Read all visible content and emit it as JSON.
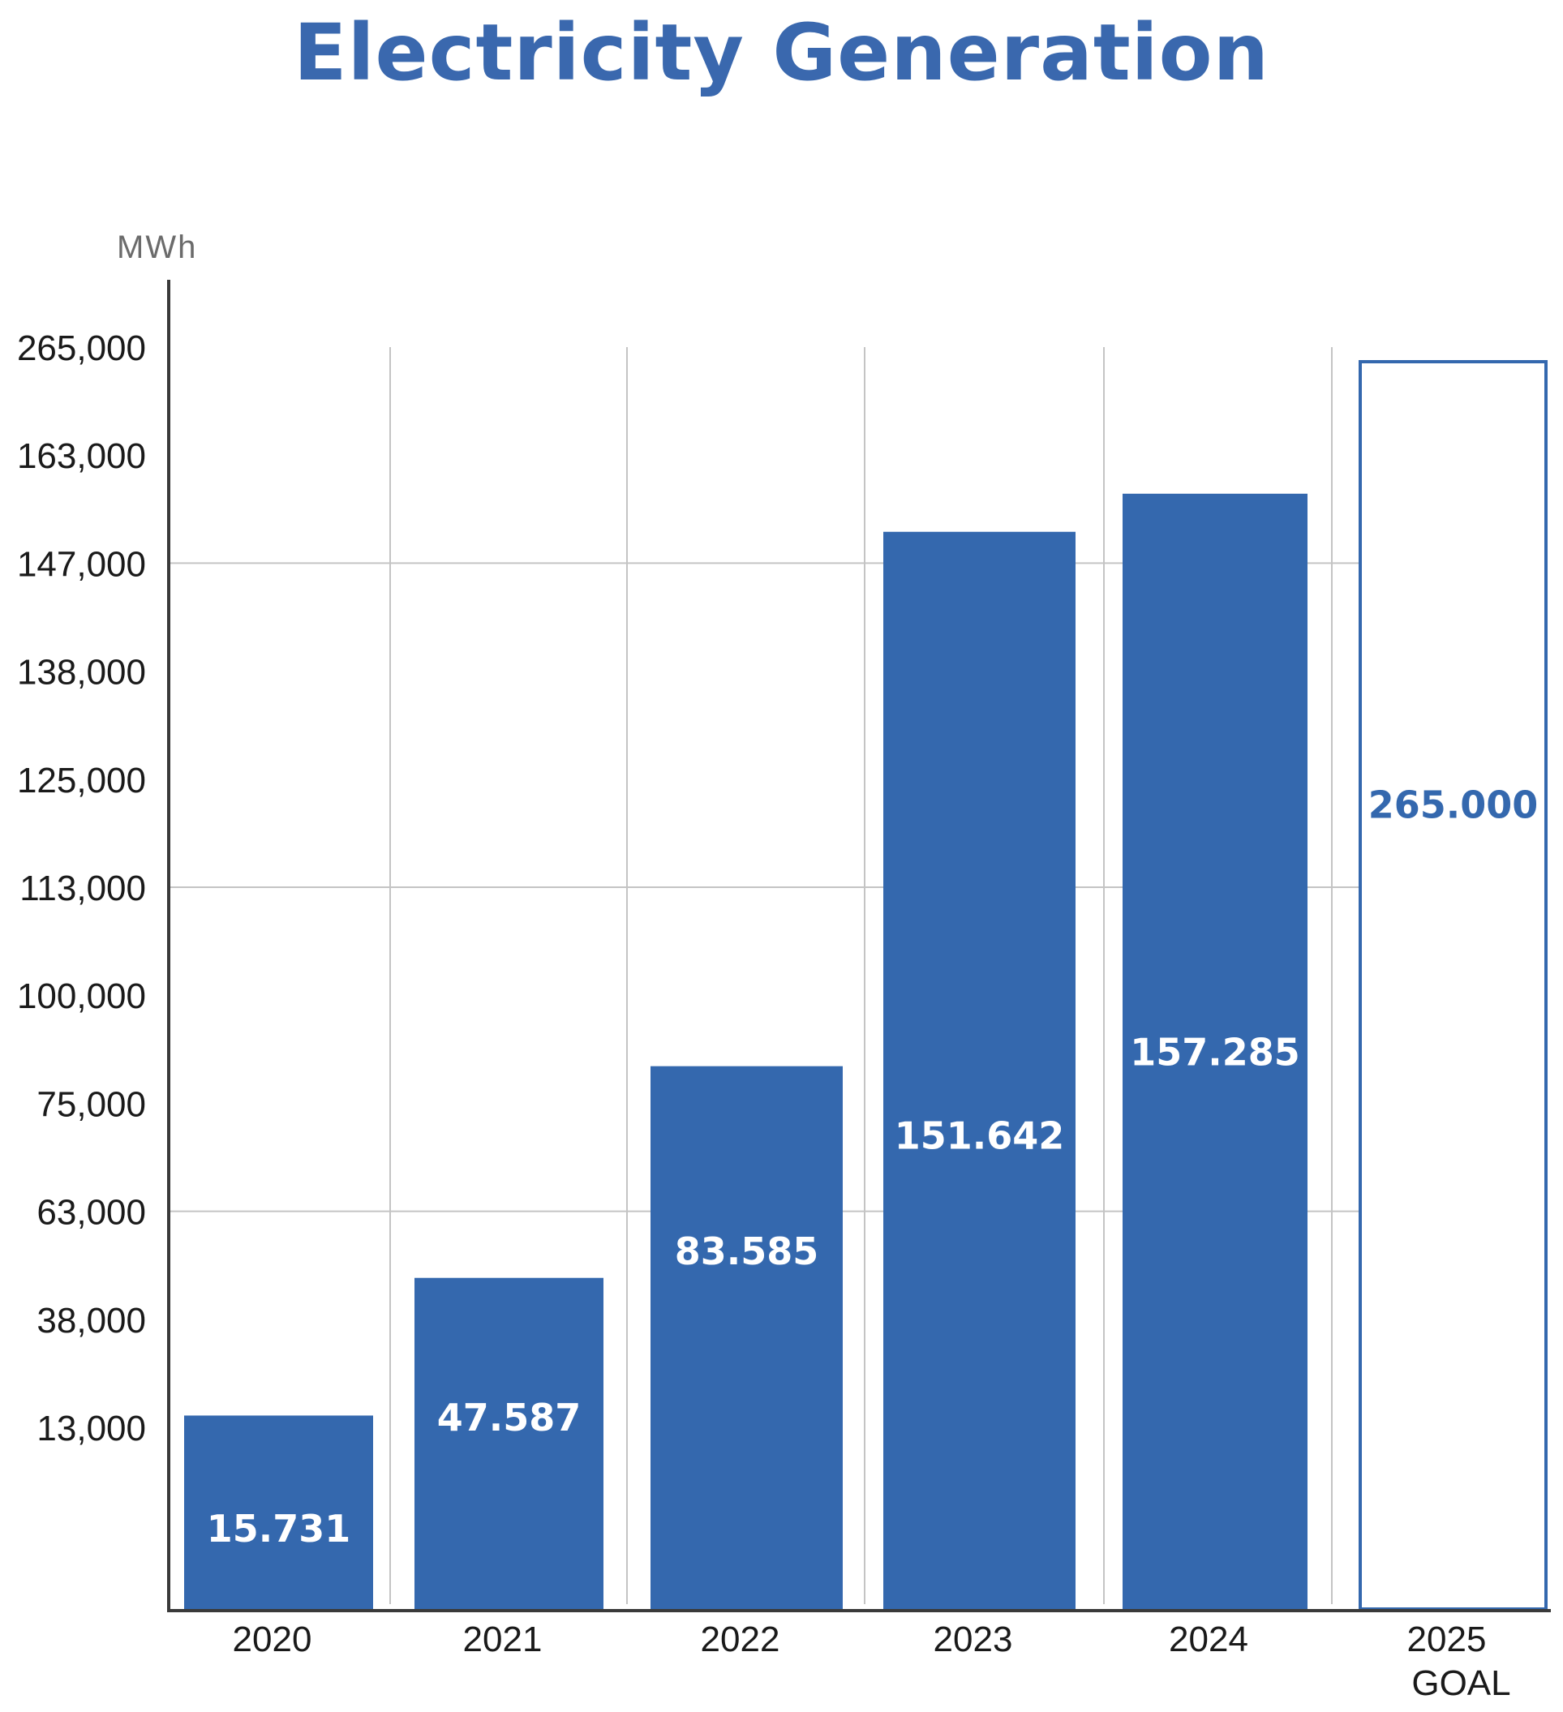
{
  "chart_data": {
    "type": "bar",
    "title": "Electricity Generation",
    "ylabel": "MWh",
    "xlabel": "",
    "y_ticks": [
      "13,000",
      "38,000",
      "63,000",
      "75,000",
      "100,000",
      "113,000",
      "125,000",
      "138,000",
      "147,000",
      "163,000",
      "265,000"
    ],
    "gridlines_at_ticks": [
      "63,000",
      "113,000",
      "147,000"
    ],
    "categories": [
      {
        "label": "2020",
        "sublabel": ""
      },
      {
        "label": "2021",
        "sublabel": ""
      },
      {
        "label": "2022",
        "sublabel": ""
      },
      {
        "label": "2023",
        "sublabel": ""
      },
      {
        "label": "2024",
        "sublabel": ""
      },
      {
        "label": "2025",
        "sublabel": "GOAL"
      }
    ],
    "values": [
      15731,
      47587,
      83585,
      151642,
      157285,
      265000
    ],
    "data_labels": [
      "15.731",
      "47.587",
      "83.585",
      "151.642",
      "157.285",
      "265.000"
    ],
    "goal_index": 5,
    "grid": true,
    "colors": {
      "bar": "#3468ae",
      "title": "#3a68ae",
      "goal_outline": "#3468ae",
      "goal_label": "#3468ae",
      "bar_label": "#ffffff",
      "grid": "#c4c4c4",
      "axis": "#3a3a3a"
    }
  }
}
